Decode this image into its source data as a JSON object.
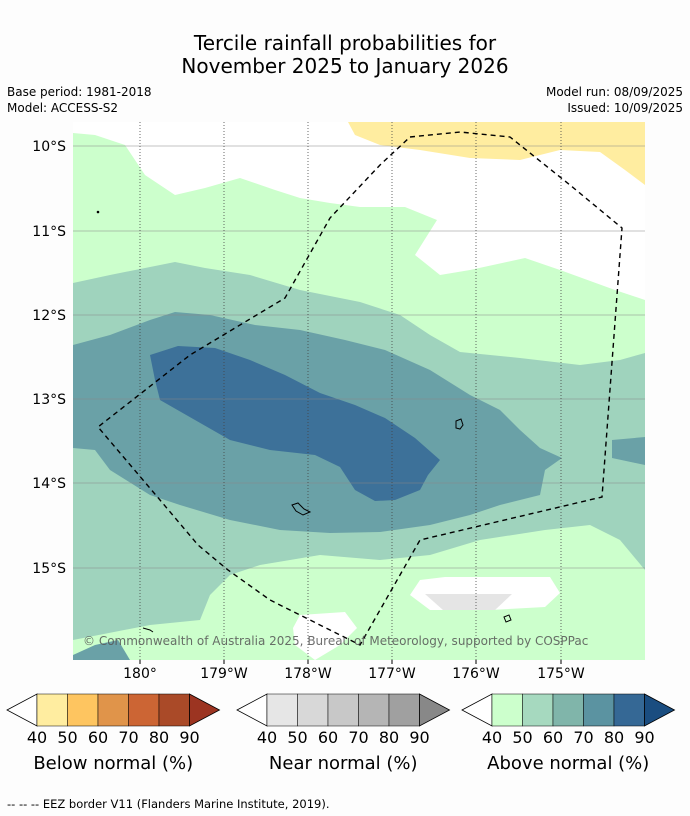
{
  "title": {
    "line1": "Tercile rainfall probabilities for",
    "line2": "November 2025 to January 2026"
  },
  "meta": {
    "base_period": "Base period: 1981-2018",
    "model": "Model: ACCESS-S2",
    "model_run": "Model run: 08/09/2025",
    "issued": "Issued: 10/09/2025"
  },
  "map": {
    "lat_labels": [
      "10°S",
      "11°S",
      "12°S",
      "13°S",
      "14°S",
      "15°S"
    ],
    "lon_labels": [
      "180°",
      "179°W",
      "178°W",
      "177°W",
      "176°W",
      "175°W"
    ],
    "copyright": "© Commonwealth of Australia 2025, Bureau of Meteorology, supported by COSPPac",
    "colors": {
      "below_40": "#ffeda0",
      "above_40": "#ccffcc",
      "above_50": "#9fd3bd",
      "above_60": "#6aa1a7",
      "above_70": "#3d7199",
      "near_white": "#e5e5e5",
      "land_outline": "#000000"
    }
  },
  "colorbars": [
    {
      "label": "Below normal (%)",
      "ticks": [
        "40",
        "50",
        "60",
        "70",
        "80",
        "90"
      ],
      "colors": [
        "#ffeda0",
        "#fec560",
        "#e0944a",
        "#cc6534",
        "#aa4a28",
        "#9c3421"
      ]
    },
    {
      "label": "Near normal (%)",
      "ticks": [
        "40",
        "50",
        "60",
        "70",
        "80",
        "90"
      ],
      "colors": [
        "#e6e6e6",
        "#d8d8d8",
        "#c8c8c8",
        "#b5b5b5",
        "#a0a0a0",
        "#888888"
      ]
    },
    {
      "label": "Above normal (%)",
      "ticks": [
        "40",
        "50",
        "60",
        "70",
        "80",
        "90"
      ],
      "colors": [
        "#ccffcc",
        "#a6d9bf",
        "#80b5aa",
        "#5b93a1",
        "#356895",
        "#1a4d80"
      ]
    }
  ],
  "footer": "--  --  -- EEZ border V11 (Flanders Marine Institute, 2019)."
}
